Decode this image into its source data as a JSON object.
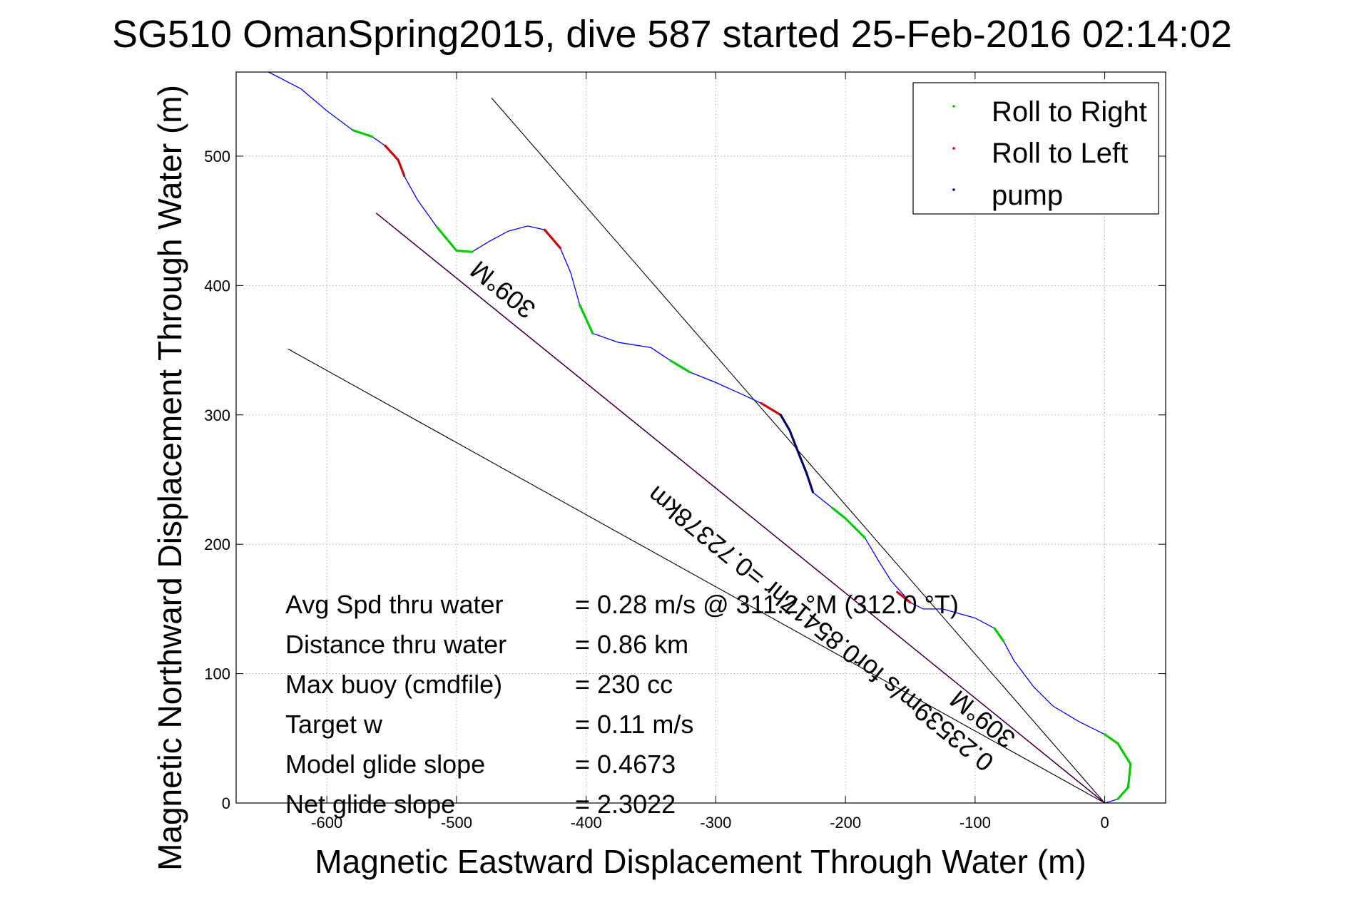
{
  "chart_data": {
    "type": "line",
    "title": "SG510 OmanSpring2015, dive 587 started 25-Feb-2016 02:14:02",
    "xlabel": "Magnetic Eastward Displacement Through Water (m)",
    "ylabel": "Magnetic Northward Displacement Through Water (m)",
    "xlim": [
      -670,
      47
    ],
    "ylim": [
      0,
      565
    ],
    "xticks": [
      -600,
      -500,
      -400,
      -300,
      -200,
      -100,
      0
    ],
    "yticks": [
      0,
      100,
      200,
      300,
      400,
      500
    ],
    "grid": true,
    "legend_position": "top-right",
    "legend": [
      {
        "label": "Roll to Right",
        "color": "#00cc00"
      },
      {
        "label": "Roll to Left",
        "color": "#cc0000"
      },
      {
        "label": "pump",
        "color": "#000066"
      }
    ],
    "track": {
      "color": "#0000ff",
      "points": [
        [
          -645,
          565
        ],
        [
          -620,
          552
        ],
        [
          -600,
          535
        ],
        [
          -580,
          520
        ],
        [
          -565,
          515
        ],
        [
          -555,
          508
        ],
        [
          -545,
          497
        ],
        [
          -540,
          484
        ],
        [
          -530,
          466
        ],
        [
          -515,
          445
        ],
        [
          -500,
          427
        ],
        [
          -488,
          426
        ],
        [
          -475,
          434
        ],
        [
          -460,
          442
        ],
        [
          -445,
          446
        ],
        [
          -432,
          443
        ],
        [
          -420,
          429
        ],
        [
          -412,
          410
        ],
        [
          -405,
          385
        ],
        [
          -395,
          363
        ],
        [
          -375,
          356
        ],
        [
          -350,
          352
        ],
        [
          -335,
          342
        ],
        [
          -320,
          333
        ],
        [
          -300,
          325
        ],
        [
          -280,
          316
        ],
        [
          -265,
          309
        ],
        [
          -250,
          300
        ],
        [
          -243,
          288
        ],
        [
          -236,
          270
        ],
        [
          -230,
          255
        ],
        [
          -225,
          240
        ],
        [
          -210,
          228
        ],
        [
          -200,
          220
        ],
        [
          -185,
          205
        ],
        [
          -175,
          188
        ],
        [
          -165,
          172
        ],
        [
          -150,
          155
        ],
        [
          -140,
          150
        ],
        [
          -125,
          150
        ],
        [
          -100,
          143
        ],
        [
          -85,
          135
        ],
        [
          -78,
          125
        ],
        [
          -70,
          110
        ],
        [
          -55,
          90
        ],
        [
          -40,
          75
        ],
        [
          -20,
          63
        ],
        [
          0,
          53
        ],
        [
          10,
          46
        ],
        [
          20,
          30
        ],
        [
          18,
          12
        ],
        [
          10,
          3
        ],
        [
          0,
          0
        ]
      ]
    },
    "roll_right_segments": [
      [
        [
          -580,
          520
        ],
        [
          -565,
          515
        ]
      ],
      [
        [
          -515,
          445
        ],
        [
          -500,
          427
        ],
        [
          -488,
          426
        ]
      ],
      [
        [
          -405,
          385
        ],
        [
          -395,
          363
        ]
      ],
      [
        [
          -335,
          342
        ],
        [
          -320,
          333
        ]
      ],
      [
        [
          -210,
          228
        ],
        [
          -200,
          220
        ],
        [
          -185,
          205
        ]
      ],
      [
        [
          -85,
          135
        ],
        [
          -78,
          125
        ]
      ],
      [
        [
          0,
          53
        ],
        [
          10,
          46
        ],
        [
          20,
          30
        ],
        [
          18,
          12
        ],
        [
          10,
          3
        ]
      ]
    ],
    "roll_left_segments": [
      [
        [
          -555,
          508
        ],
        [
          -545,
          497
        ],
        [
          -540,
          484
        ]
      ],
      [
        [
          -432,
          443
        ],
        [
          -420,
          429
        ]
      ],
      [
        [
          -265,
          309
        ],
        [
          -250,
          300
        ]
      ],
      [
        [
          -160,
          163
        ],
        [
          -150,
          155
        ]
      ]
    ],
    "pump_segments": [
      [
        [
          -250,
          300
        ],
        [
          -243,
          288
        ],
        [
          -236,
          270
        ],
        [
          -230,
          255
        ],
        [
          -225,
          240
        ]
      ]
    ],
    "reference_lines": [
      {
        "color": "#000000",
        "from": [
          0,
          0
        ],
        "to": [
          -473,
          545
        ]
      },
      {
        "color": "#000000",
        "from": [
          0,
          0
        ],
        "to": [
          -630,
          351
        ]
      },
      {
        "color": "#ff00ff",
        "from": [
          0,
          0
        ],
        "to": [
          -562,
          456
        ]
      },
      {
        "color": "#000000",
        "from": [
          0,
          0
        ],
        "to": [
          -562,
          456
        ]
      }
    ],
    "annotations": [
      {
        "text": "309°M",
        "at": [
          -460,
          402
        ],
        "angle": 39
      },
      {
        "text": "309°M",
        "at": [
          -90,
          70
        ],
        "angle": 39
      },
      {
        "text": "0.23539m/s for0.85417hr =0.72378km",
        "at": [
          -215,
          140
        ],
        "angle": 39
      }
    ],
    "stats": [
      {
        "label": "Avg Spd thru water",
        "value": "=  0.28 m/s @ 311.2 °M (312.0 °T)"
      },
      {
        "label": "Distance thru water",
        "value": "=  0.86 km"
      },
      {
        "label": "Max buoy (cmdfile)",
        "value": "= 230 cc"
      },
      {
        "label": "Target w",
        "value": "= 0.11 m/s"
      },
      {
        "label": "Model glide slope",
        "value": "= 0.4673"
      },
      {
        "label": "Net glide slope",
        "value": "= 2.3022"
      }
    ]
  }
}
